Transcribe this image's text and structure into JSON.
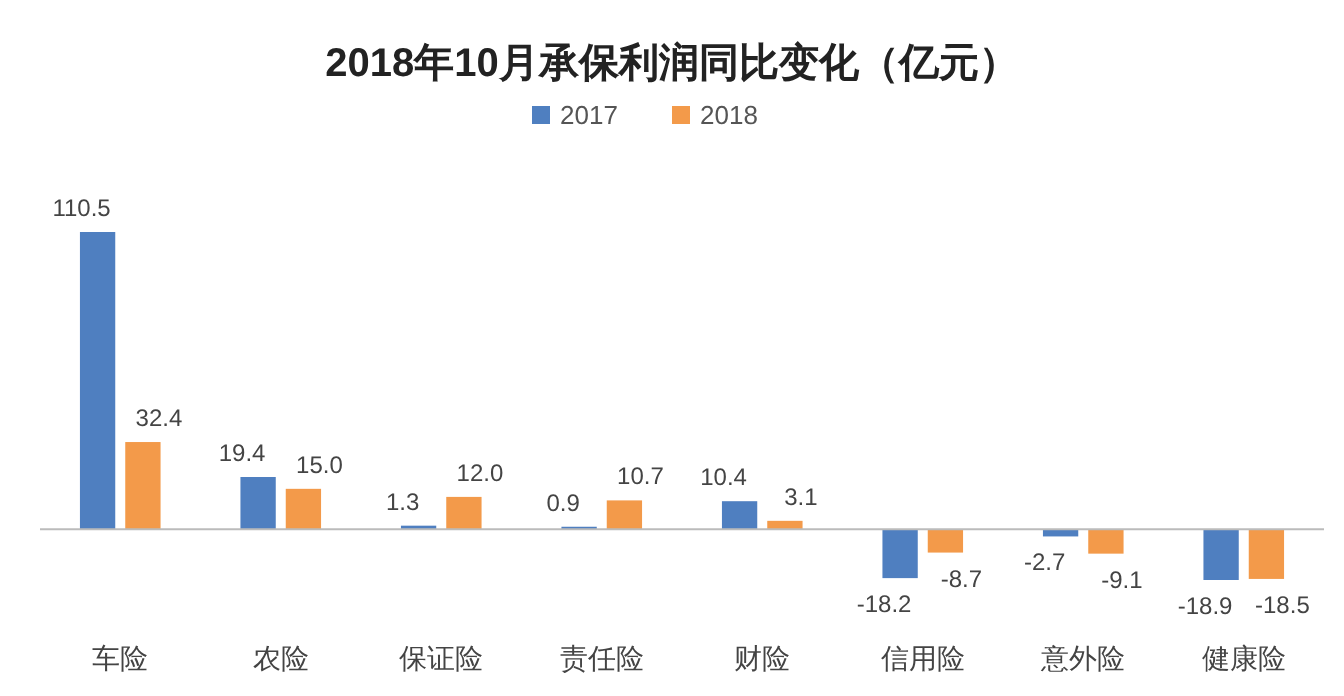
{
  "chart_data": {
    "type": "bar",
    "title": "2018年10月承保利润同比变化（亿元）",
    "categories": [
      "车险",
      "农险",
      "保证险",
      "责任险",
      "财险",
      "信用险",
      "意外险",
      "健康险"
    ],
    "series": [
      {
        "name": "2017",
        "color": "#4f7fc0",
        "values": [
          110.5,
          19.4,
          1.3,
          0.9,
          10.4,
          -18.2,
          -2.7,
          -18.9
        ],
        "value_labels": [
          "110.5",
          "19.4",
          "1.3",
          "0.9",
          "10.4",
          "-18.2",
          "-2.7",
          "-18.9"
        ]
      },
      {
        "name": "2018",
        "color": "#f39a4a",
        "values": [
          32.4,
          15.0,
          12.0,
          10.7,
          3.1,
          -8.7,
          -9.1,
          -18.5
        ],
        "value_labels": [
          "32.4",
          "15.0",
          "12.0",
          "10.7",
          "3.1",
          "-8.7",
          "-9.1",
          "-18.5"
        ]
      }
    ],
    "legend": "top",
    "grid": false
  }
}
